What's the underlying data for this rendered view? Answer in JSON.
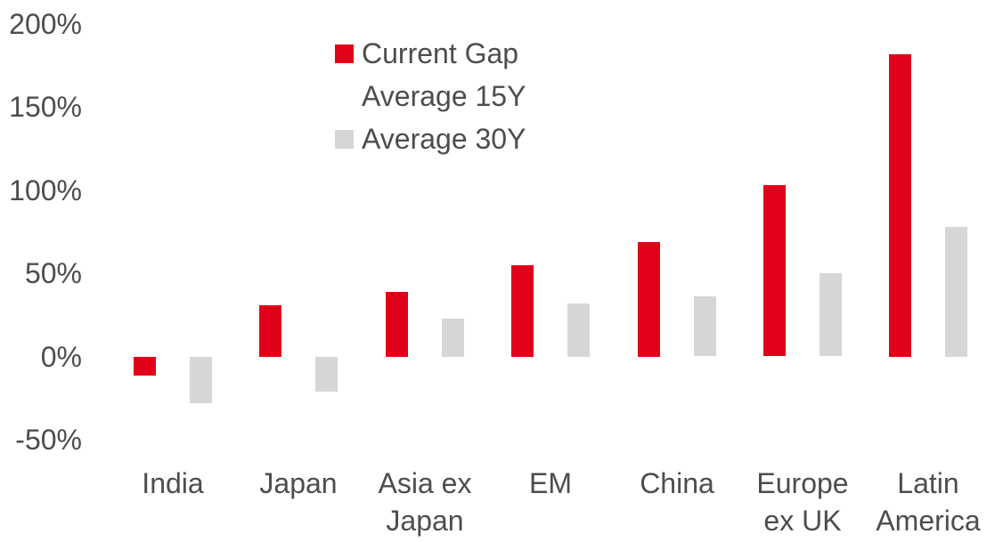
{
  "chart_data": {
    "type": "bar",
    "title": "",
    "xlabel": "",
    "ylabel": "",
    "categories": [
      "India",
      "Japan",
      "Asia ex Japan",
      "EM",
      "China",
      "Europe ex UK",
      "Latin America"
    ],
    "category_label_lines": [
      [
        "India"
      ],
      [
        "Japan"
      ],
      [
        "Asia ex",
        "Japan"
      ],
      [
        "EM"
      ],
      [
        "China"
      ],
      [
        "Europe",
        "ex UK"
      ],
      [
        "Latin",
        "America"
      ]
    ],
    "series": [
      {
        "name": "Current Gap",
        "color": "#e00019",
        "values": [
          -11,
          31,
          39,
          55,
          69,
          103,
          182
        ]
      },
      {
        "name": "Average 15Y",
        "color": "#ffffff",
        "values": [
          null,
          null,
          null,
          null,
          null,
          null,
          null
        ]
      },
      {
        "name": "Average 30Y",
        "color": "#d6d6d4",
        "values": [
          -28,
          -21,
          23,
          32,
          36,
          50,
          78
        ]
      }
    ],
    "y_ticks": [
      "200%",
      "150%",
      "100%",
      "50%",
      "0%",
      "-50%"
    ],
    "y_tick_values": [
      200,
      150,
      100,
      50,
      0,
      -50
    ],
    "ylim": [
      -50,
      200
    ],
    "unit": "%",
    "grid": false,
    "legend_position": "top-left-inside"
  },
  "colors": {
    "background": "#ffffff",
    "text": "#4d4d4d",
    "accent_red": "#e00019",
    "light_gray": "#d6d6d4"
  }
}
